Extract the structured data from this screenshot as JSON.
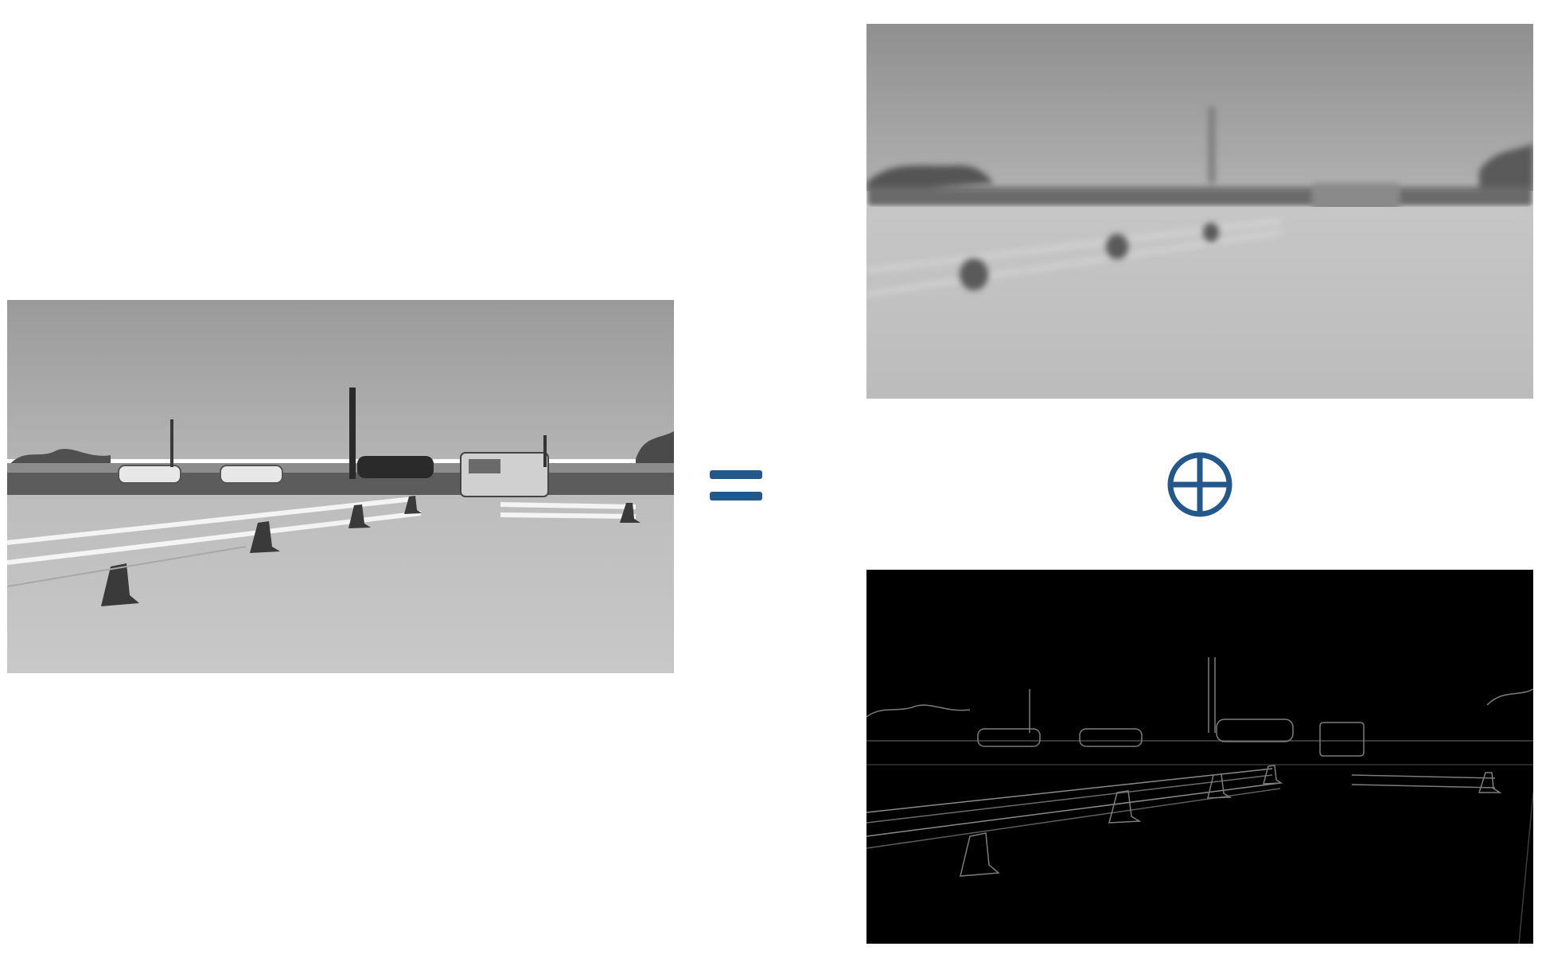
{
  "figure": {
    "operator_equals": "=",
    "operator_combine": "⊕",
    "symbol_color": "#24578a",
    "images": [
      {
        "role": "original",
        "description_icon": "grayscale-road-photo"
      },
      {
        "role": "low-frequency",
        "description_icon": "blurred-road-photo"
      },
      {
        "role": "high-frequency",
        "description_icon": "edge-map-photo"
      }
    ]
  }
}
